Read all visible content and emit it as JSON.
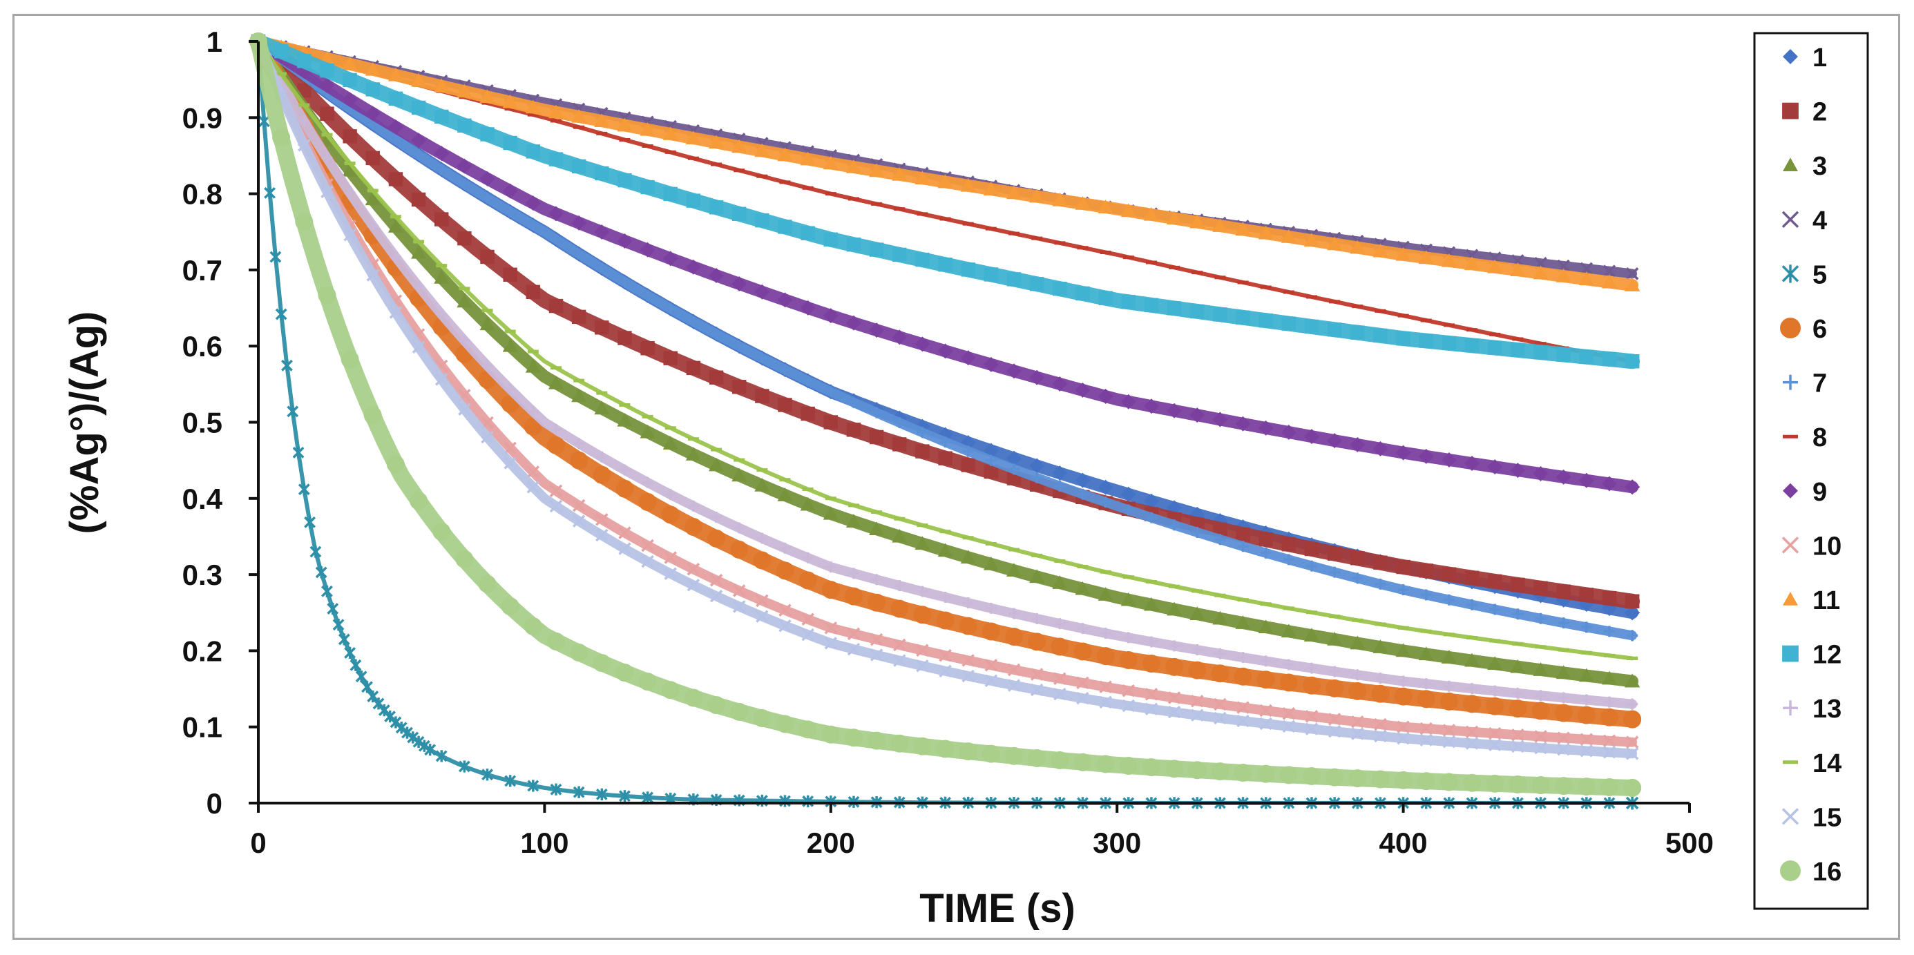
{
  "chart_data": {
    "type": "scatter",
    "title": "",
    "xlabel": "TIME (s)",
    "ylabel": "(%Ag°)/(Ag)",
    "xlim": [
      0,
      500
    ],
    "ylim": [
      0,
      1
    ],
    "x_ticks": [
      "0",
      "100",
      "200",
      "300",
      "400",
      "500"
    ],
    "y_ticks": [
      "0",
      "0.1",
      "0.2",
      "0.3",
      "0.4",
      "0.5",
      "0.6",
      "0.7",
      "0.8",
      "0.9",
      "1"
    ],
    "grid": false,
    "legend_position": "right",
    "x_range": [
      0,
      480
    ],
    "series": [
      {
        "name": "1",
        "color": "#4472c4",
        "marker": "diamond",
        "values_at_x": {
          "x": [
            0,
            100,
            200,
            300,
            400,
            480
          ],
          "y": [
            1.0,
            0.75,
            0.54,
            0.41,
            0.31,
            0.25
          ]
        }
      },
      {
        "name": "2",
        "color": "#a33b3b",
        "marker": "square",
        "values_at_x": {
          "x": [
            0,
            100,
            200,
            300,
            400,
            480
          ],
          "y": [
            1.0,
            0.66,
            0.5,
            0.39,
            0.31,
            0.265
          ]
        }
      },
      {
        "name": "3",
        "color": "#77933c",
        "marker": "triangle",
        "values_at_x": {
          "x": [
            0,
            100,
            200,
            300,
            400,
            480
          ],
          "y": [
            1.0,
            0.56,
            0.38,
            0.27,
            0.2,
            0.16
          ]
        }
      },
      {
        "name": "4",
        "color": "#6e5a91",
        "marker": "x",
        "values_at_x": {
          "x": [
            0,
            100,
            200,
            300,
            400,
            480
          ],
          "y": [
            1.0,
            0.92,
            0.85,
            0.78,
            0.73,
            0.695
          ]
        }
      },
      {
        "name": "5",
        "color": "#2e8fa8",
        "marker": "star",
        "values_at_x": {
          "x": [
            0,
            20,
            40,
            60,
            100,
            150,
            200,
            300,
            480
          ],
          "y": [
            1.0,
            0.33,
            0.14,
            0.07,
            0.02,
            0.005,
            0.002,
            0.0,
            0.0
          ]
        }
      },
      {
        "name": "6",
        "color": "#e0762a",
        "marker": "circle",
        "values_at_x": {
          "x": [
            0,
            100,
            200,
            300,
            400,
            480
          ],
          "y": [
            1.0,
            0.48,
            0.28,
            0.19,
            0.14,
            0.11
          ]
        }
      },
      {
        "name": "7",
        "color": "#5b8fd6",
        "marker": "plus",
        "values_at_x": {
          "x": [
            0,
            100,
            200,
            300,
            400,
            480
          ],
          "y": [
            1.0,
            0.75,
            0.54,
            0.39,
            0.28,
            0.22
          ]
        }
      },
      {
        "name": "8",
        "color": "#c0392b",
        "marker": "dash",
        "values_at_x": {
          "x": [
            0,
            100,
            200,
            300,
            400,
            480
          ],
          "y": [
            1.0,
            0.9,
            0.8,
            0.72,
            0.64,
            0.58
          ]
        }
      },
      {
        "name": "9",
        "color": "#7b3fa0",
        "marker": "diamond",
        "values_at_x": {
          "x": [
            0,
            100,
            200,
            300,
            400,
            480
          ],
          "y": [
            1.0,
            0.78,
            0.64,
            0.53,
            0.46,
            0.415
          ]
        }
      },
      {
        "name": "10",
        "color": "#e6a0a0",
        "marker": "x",
        "values_at_x": {
          "x": [
            0,
            100,
            200,
            300,
            400,
            480
          ],
          "y": [
            1.0,
            0.42,
            0.23,
            0.15,
            0.1,
            0.08
          ]
        }
      },
      {
        "name": "11",
        "color": "#f79a38",
        "marker": "triangle",
        "values_at_x": {
          "x": [
            0,
            100,
            200,
            300,
            400,
            480
          ],
          "y": [
            1.0,
            0.91,
            0.84,
            0.78,
            0.72,
            0.68
          ]
        }
      },
      {
        "name": "12",
        "color": "#3fb3d1",
        "marker": "square",
        "values_at_x": {
          "x": [
            0,
            100,
            200,
            300,
            400,
            480
          ],
          "y": [
            1.0,
            0.85,
            0.74,
            0.66,
            0.61,
            0.58
          ]
        }
      },
      {
        "name": "13",
        "color": "#c9b8d8",
        "marker": "plus",
        "values_at_x": {
          "x": [
            0,
            100,
            200,
            300,
            400,
            480
          ],
          "y": [
            1.0,
            0.5,
            0.31,
            0.22,
            0.16,
            0.13
          ]
        }
      },
      {
        "name": "14",
        "color": "#9bc34c",
        "marker": "dash",
        "values_at_x": {
          "x": [
            0,
            100,
            200,
            300,
            400,
            480
          ],
          "y": [
            1.0,
            0.58,
            0.4,
            0.3,
            0.23,
            0.19
          ]
        }
      },
      {
        "name": "15",
        "color": "#b7c3e6",
        "marker": "x",
        "values_at_x": {
          "x": [
            0,
            100,
            200,
            300,
            400,
            480
          ],
          "y": [
            1.0,
            0.4,
            0.21,
            0.13,
            0.085,
            0.065
          ]
        }
      },
      {
        "name": "16",
        "color": "#a9cf8a",
        "marker": "circle",
        "values_at_x": {
          "x": [
            0,
            50,
            100,
            200,
            300,
            400,
            480
          ],
          "y": [
            1.0,
            0.43,
            0.22,
            0.09,
            0.05,
            0.03,
            0.02
          ]
        }
      }
    ]
  }
}
